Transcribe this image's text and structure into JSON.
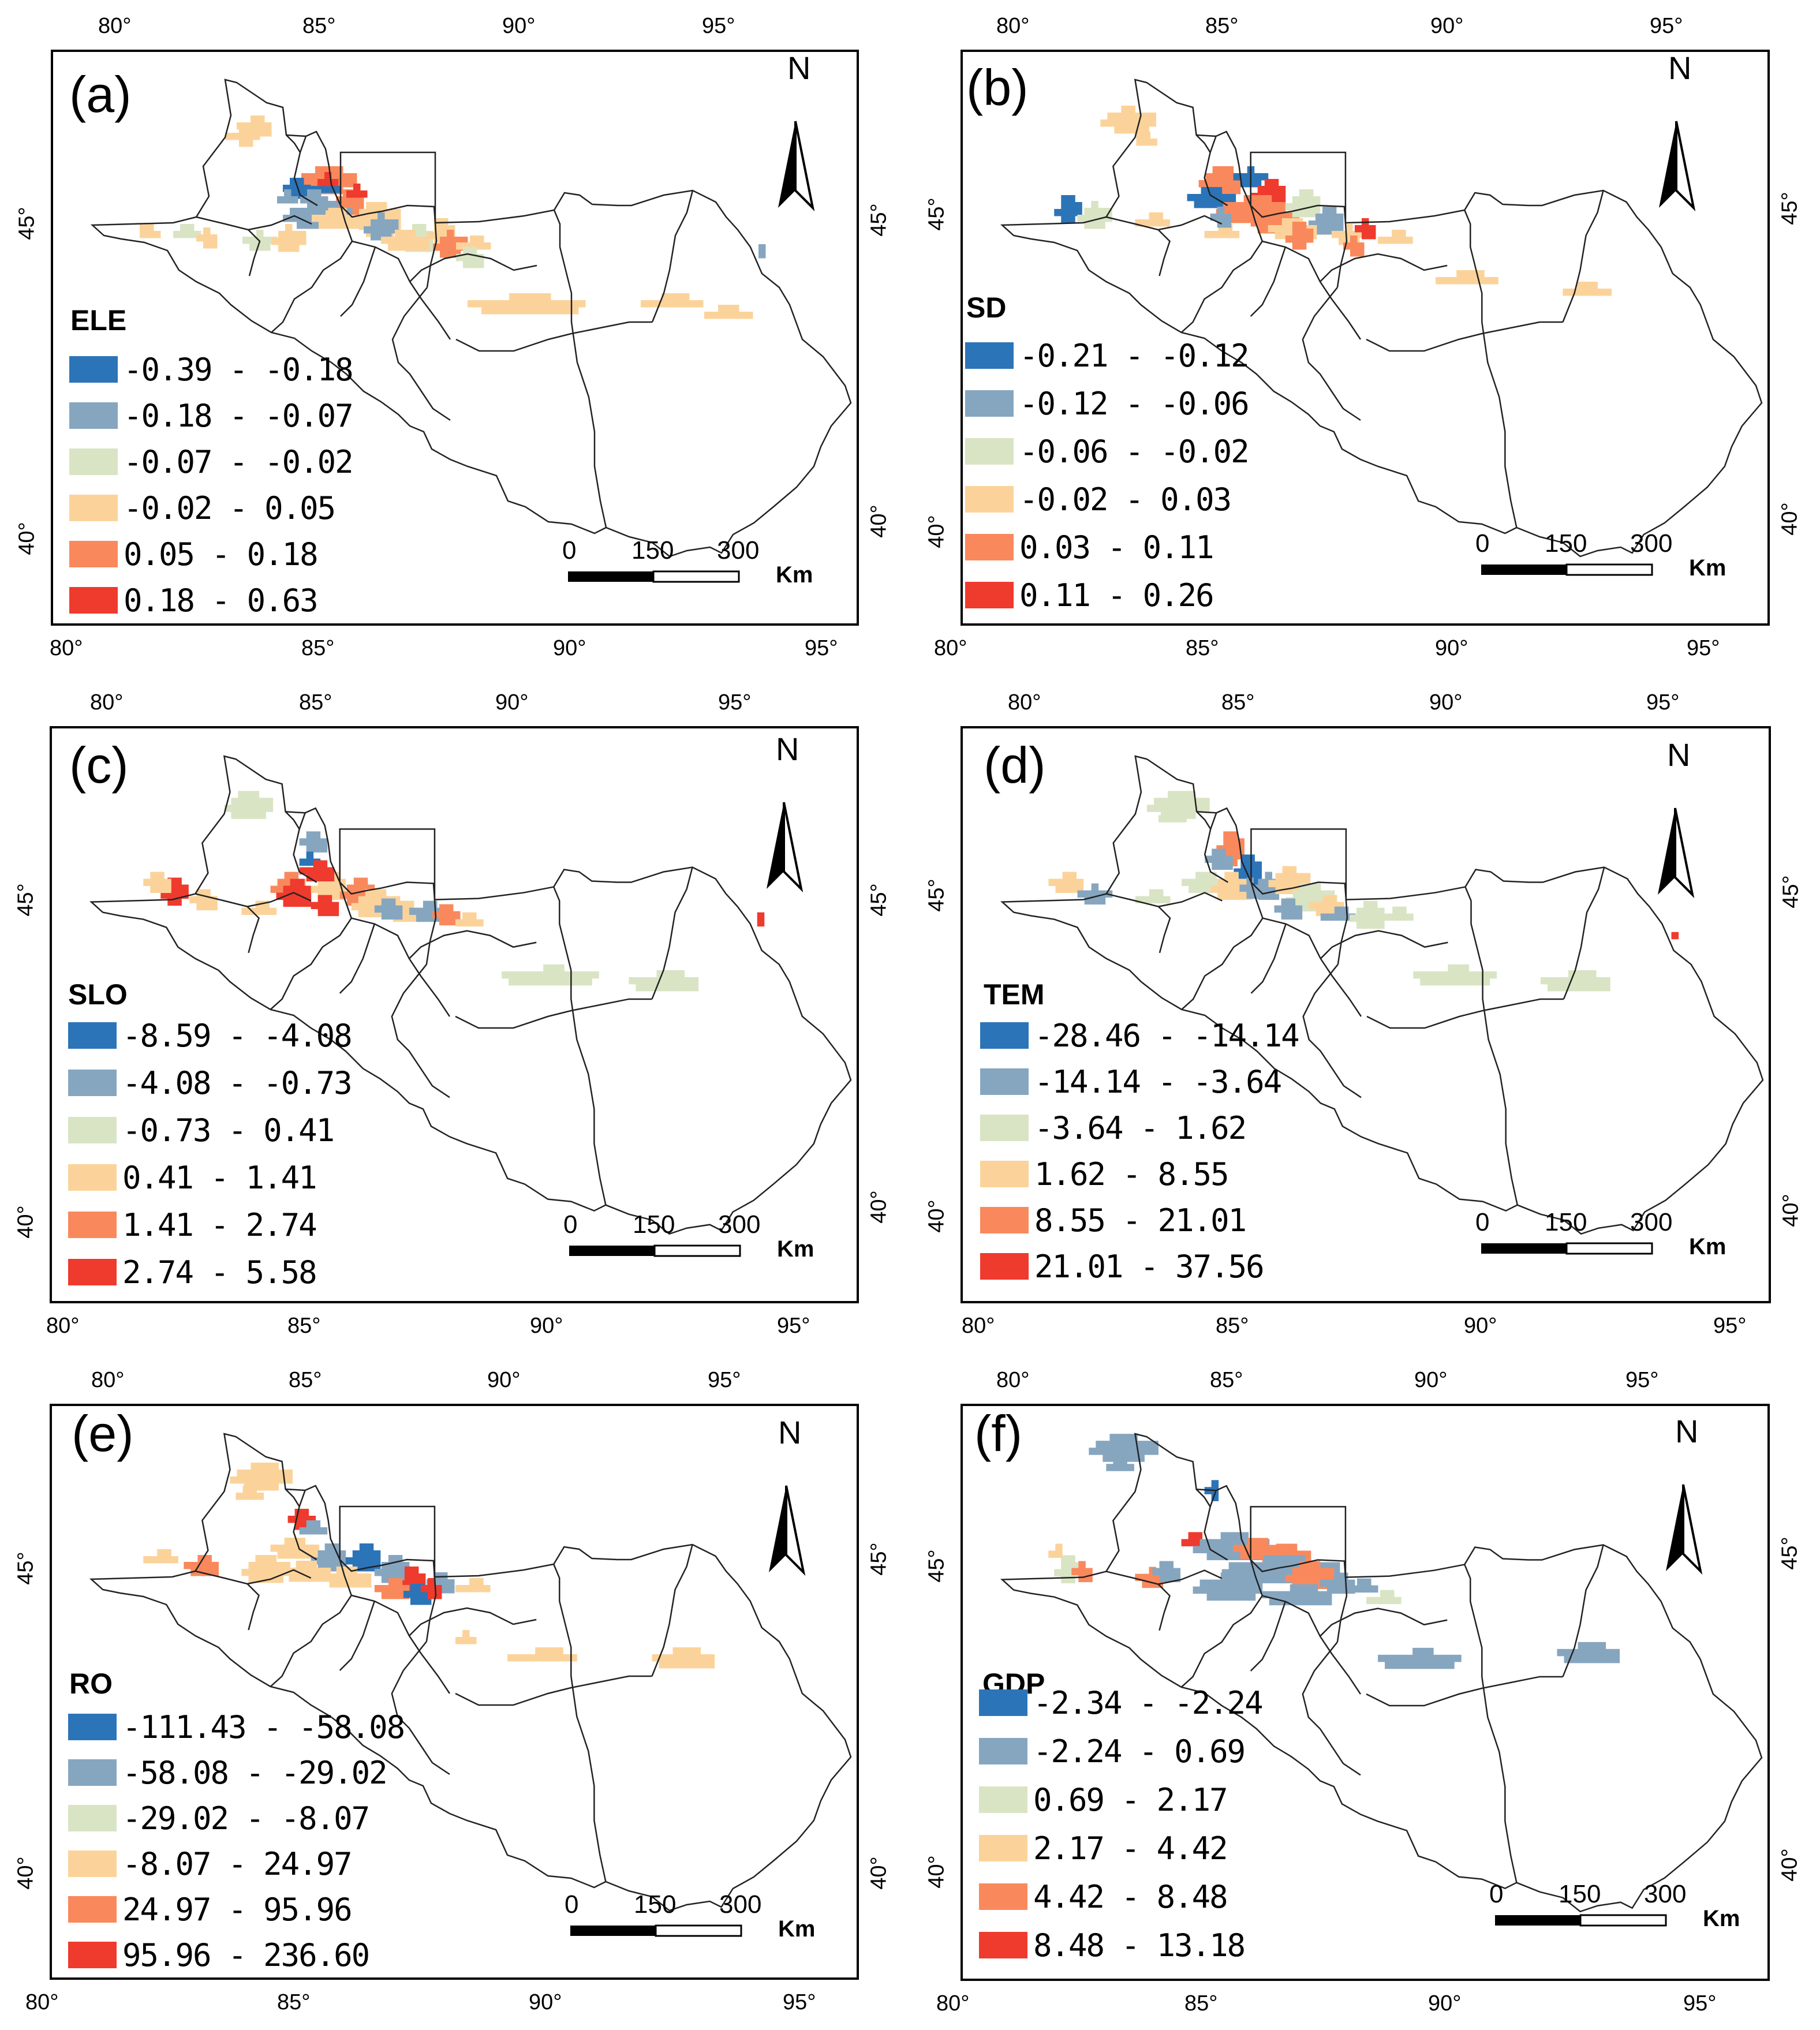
{
  "colors": {
    "class1": "#2c74b8",
    "class2": "#86a6c0",
    "class3": "#d9e4c4",
    "class4": "#fbd39a",
    "class5": "#f9895c",
    "class6": "#ef3a2e",
    "frame": "#000000",
    "boundary": "#222222"
  },
  "map": {
    "north_label": "N",
    "scale_labels": [
      "0",
      "150",
      "300"
    ],
    "scale_unit": "Km",
    "lon_ticks": [
      "80°",
      "85°",
      "90°",
      "95°"
    ],
    "lat_ticks": [
      "45°",
      "40°"
    ]
  },
  "panels": [
    {
      "id": "a",
      "label": "(a)",
      "variable": "ELE",
      "legend": [
        "-0.39 - -0.18",
        "-0.18 - -0.07",
        "-0.07 - -0.02",
        "-0.02 - 0.05",
        "0.05 - 0.18",
        "0.18 - 0.63"
      ]
    },
    {
      "id": "b",
      "label": "(b)",
      "variable": "SD",
      "legend": [
        "-0.21 - -0.12",
        "-0.12 - -0.06",
        "-0.06 - -0.02",
        "-0.02 - 0.03",
        "0.03 - 0.11",
        "0.11 - 0.26"
      ]
    },
    {
      "id": "c",
      "label": "(c)",
      "variable": "SLO",
      "legend": [
        "-8.59 - -4.08",
        "-4.08 - -0.73",
        "-0.73 - 0.41",
        "0.41 - 1.41",
        "1.41 - 2.74",
        "2.74 - 5.58"
      ]
    },
    {
      "id": "d",
      "label": "(d)",
      "variable": "TEM",
      "legend": [
        "-28.46 - -14.14",
        "-14.14 - -3.64",
        "-3.64 - 1.62",
        "1.62 - 8.55",
        "8.55 - 21.01",
        "21.01 - 37.56"
      ]
    },
    {
      "id": "e",
      "label": "(e)",
      "variable": "RO",
      "legend": [
        "-111.43 - -58.08",
        "-58.08 - -29.02",
        "-29.02 - -8.07",
        "-8.07 - 24.97",
        "24.97 - 95.96",
        "95.96 - 236.60"
      ]
    },
    {
      "id": "f",
      "label": "(f)",
      "variable": "GDP",
      "legend": [
        "-2.34 - -2.24",
        "-2.24 - 0.69",
        "0.69 - 2.17",
        "2.17 - 4.42",
        "4.42 - 8.48",
        "8.48 - 13.18"
      ]
    }
  ]
}
